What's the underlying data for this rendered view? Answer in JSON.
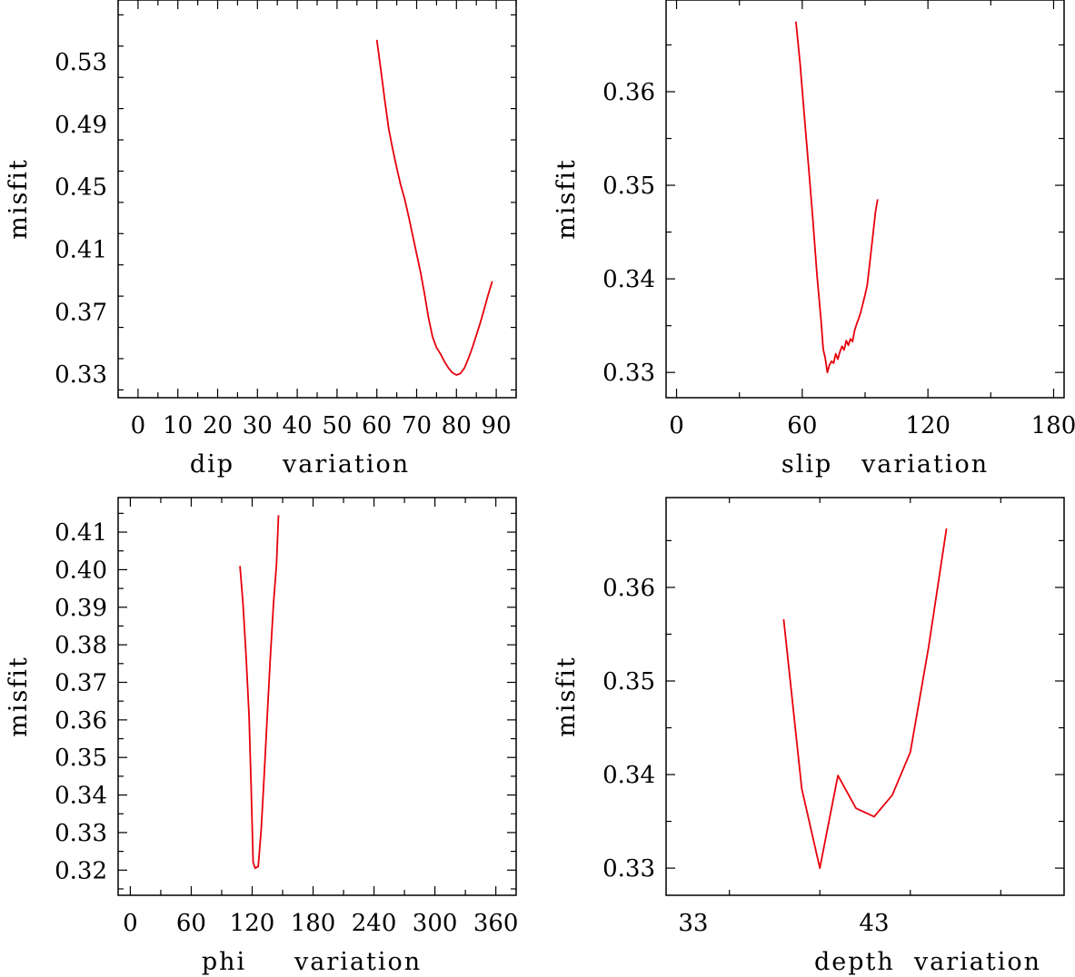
{
  "chart_data": [
    {
      "type": "line",
      "xlabel": "dip     variation",
      "ylabel": "misfit",
      "xlim": [
        -5,
        95
      ],
      "ylim": [
        0.315,
        0.5695
      ],
      "xticks": [
        0,
        10,
        20,
        30,
        40,
        50,
        60,
        70,
        80,
        90
      ],
      "xtick_labels": [
        "0",
        "10",
        "20",
        "30",
        "40",
        "50",
        "60",
        "70",
        "80",
        "90"
      ],
      "yticks": [
        0.33,
        0.37,
        0.41,
        0.45,
        0.49,
        0.53
      ],
      "ytick_labels": [
        "0.33",
        "0.37",
        "0.41",
        "0.45",
        "0.49",
        "0.53"
      ],
      "line_color": "#e8000b",
      "series": [
        {
          "x": [
            60,
            61,
            62,
            63,
            64,
            65,
            66,
            67,
            68,
            69,
            70,
            71,
            72,
            73,
            74,
            75,
            76,
            77,
            78,
            79,
            80,
            81,
            82,
            83,
            84,
            85,
            86,
            87,
            88,
            89
          ],
          "y": [
            0.544,
            0.525,
            0.505,
            0.487,
            0.474,
            0.462,
            0.451,
            0.442,
            0.431,
            0.419,
            0.407,
            0.395,
            0.381,
            0.366,
            0.354,
            0.347,
            0.343,
            0.338,
            0.334,
            0.331,
            0.3295,
            0.3305,
            0.334,
            0.34,
            0.347,
            0.355,
            0.363,
            0.372,
            0.381,
            0.3895
          ]
        }
      ]
    },
    {
      "type": "line",
      "xlabel": "slip   variation",
      "ylabel": "misfit",
      "xlim": [
        -5,
        185
      ],
      "ylim": [
        0.3273,
        0.3698
      ],
      "xticks": [
        0,
        60,
        120,
        180
      ],
      "xtick_labels": [
        "0",
        "60",
        "120",
        "180"
      ],
      "yticks": [
        0.33,
        0.34,
        0.35,
        0.36
      ],
      "ytick_labels": [
        "0.33",
        "0.34",
        "0.35",
        "0.36"
      ],
      "line_color": "#e8000b",
      "series": [
        {
          "x": [
            57,
            59,
            61,
            63,
            65,
            67,
            69,
            70,
            71,
            72,
            73,
            74,
            75,
            76,
            77,
            78,
            79,
            80,
            81,
            82,
            83,
            84,
            85,
            86,
            87,
            88,
            89,
            90,
            91,
            92,
            93,
            94,
            95,
            96
          ],
          "y": [
            0.3675,
            0.363,
            0.3575,
            0.352,
            0.3465,
            0.3405,
            0.3355,
            0.3325,
            0.3315,
            0.33,
            0.3308,
            0.3312,
            0.331,
            0.332,
            0.3314,
            0.3322,
            0.3328,
            0.3324,
            0.3334,
            0.3329,
            0.3336,
            0.3333,
            0.3345,
            0.3352,
            0.3358,
            0.3365,
            0.3374,
            0.3383,
            0.3393,
            0.3412,
            0.3432,
            0.3452,
            0.3472,
            0.3485
          ]
        }
      ]
    },
    {
      "type": "line",
      "xlabel": "phi     variation",
      "ylabel": "misfit",
      "xlim": [
        -12,
        380
      ],
      "ylim": [
        0.3133,
        0.4192
      ],
      "xticks": [
        0,
        60,
        120,
        180,
        240,
        300,
        360
      ],
      "xtick_labels": [
        "0",
        "60",
        "120",
        "180",
        "240",
        "300",
        "360"
      ],
      "yticks": [
        0.32,
        0.33,
        0.34,
        0.35,
        0.36,
        0.37,
        0.38,
        0.39,
        0.4,
        0.41
      ],
      "ytick_labels": [
        "0.32",
        "0.33",
        "0.34",
        "0.35",
        "0.36",
        "0.37",
        "0.38",
        "0.39",
        "0.40",
        "0.41"
      ],
      "line_color": "#e8000b",
      "series": [
        {
          "x": [
            108,
            111,
            114,
            117,
            119,
            121,
            123,
            126,
            129,
            132,
            135,
            138,
            141,
            144,
            146
          ],
          "y": [
            0.401,
            0.391,
            0.377,
            0.361,
            0.342,
            0.322,
            0.3205,
            0.321,
            0.331,
            0.346,
            0.362,
            0.377,
            0.391,
            0.4015,
            0.4145
          ]
        }
      ]
    },
    {
      "type": "line",
      "xlabel": "depth  variation",
      "ylabel": "misfit",
      "xlim": [
        31.5,
        53.5
      ],
      "ylim": [
        0.3271,
        0.3696
      ],
      "xticks": [
        33,
        43
      ],
      "xtick_labels": [
        "33",
        "43"
      ],
      "yticks": [
        0.33,
        0.34,
        0.35,
        0.36
      ],
      "ytick_labels": [
        "0.33",
        "0.34",
        "0.35",
        "0.36"
      ],
      "line_color": "#e8000b",
      "series": [
        {
          "x": [
            38,
            39,
            40,
            41,
            42,
            43,
            44,
            45,
            46,
            47
          ],
          "y": [
            0.3566,
            0.3385,
            0.33,
            0.3399,
            0.3364,
            0.3355,
            0.3378,
            0.3424,
            0.3535,
            0.3663
          ]
        }
      ]
    }
  ]
}
